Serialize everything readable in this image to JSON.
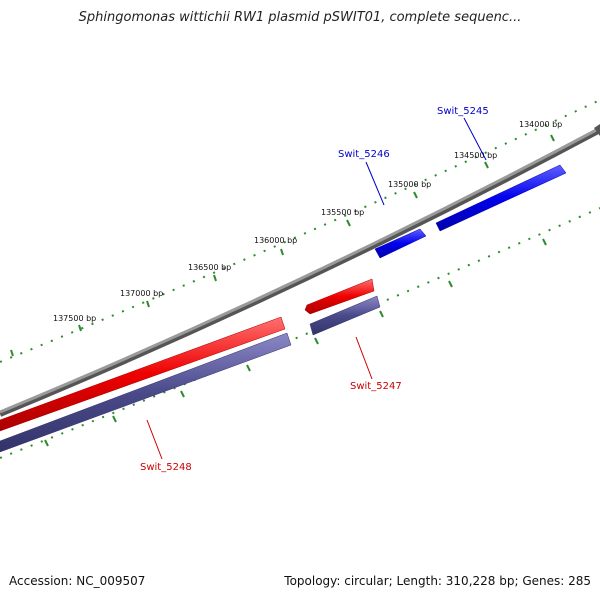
{
  "title": "Sphingomonas wittichii RW1 plasmid pSWIT01, complete sequenc...",
  "footer": {
    "accession": "Accession: NC_009507",
    "summary": "Topology: circular; Length: 310,228 bp; Genes: 285"
  },
  "ticks": [
    {
      "label": "134000 bp"
    },
    {
      "label": "134500 bp"
    },
    {
      "label": "135000 bp"
    },
    {
      "label": "135500 bp"
    },
    {
      "label": "136000 bp"
    },
    {
      "label": "136500 bp"
    },
    {
      "label": "137000 bp"
    },
    {
      "label": "137500 bp"
    }
  ],
  "genes": [
    {
      "name": "Swit_5245",
      "strand": "forward"
    },
    {
      "name": "Swit_5246",
      "strand": "forward"
    },
    {
      "name": "Swit_5247",
      "strand": "reverse"
    },
    {
      "name": "Swit_5248",
      "strand": "reverse"
    }
  ],
  "colors": {
    "forward_gene": "#0000ff",
    "reverse_gene": "#ff0000",
    "reverse_cds": "#4a4a8a",
    "backbone": "#808080",
    "ticks": "#2e8b2e"
  }
}
